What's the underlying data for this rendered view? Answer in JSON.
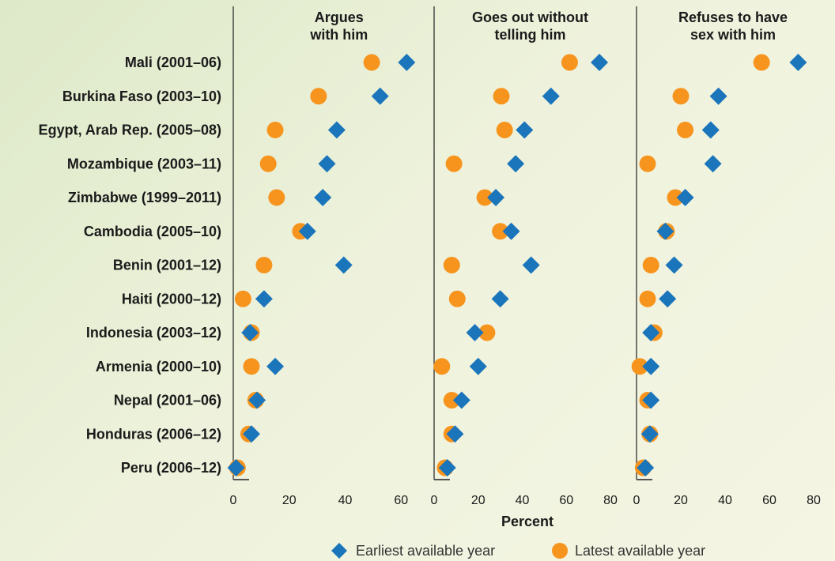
{
  "chart_data": {
    "type": "scatter",
    "xlabel": "Percent",
    "x_ticks": [
      "0",
      "20",
      "40",
      "60",
      "80"
    ],
    "countries": [
      "Mali (2001–06)",
      "Burkina Faso (2003–10)",
      "Egypt, Arab Rep. (2005–08)",
      "Mozambique (2003–11)",
      "Zimbabwe (1999–2011)",
      "Cambodia (2005–10)",
      "Benin (2001–12)",
      "Haiti (2000–12)",
      "Indonesia (2003–12)",
      "Armenia (2000–10)",
      "Nepal (2001–06)",
      "Honduras (2006–12)",
      "Peru (2006–12)"
    ],
    "panels": [
      {
        "title_lines": [
          "Argues",
          "with him"
        ],
        "xlim": [
          0,
          70
        ],
        "earliest": [
          62,
          52.5,
          37,
          33.5,
          32,
          26.5,
          39.5,
          11,
          6,
          15,
          8.5,
          6.5,
          1
        ],
        "latest": [
          49.5,
          30.5,
          15,
          12.5,
          15.5,
          24,
          11,
          3.5,
          6.5,
          6.5,
          8,
          5.5,
          1.5
        ]
      },
      {
        "title_lines": [
          "Goes out without",
          "telling him"
        ],
        "xlim": [
          0,
          80
        ],
        "earliest": [
          75,
          53,
          41,
          37,
          28,
          35,
          44,
          30,
          18.5,
          20,
          12.5,
          9.5,
          6
        ],
        "latest": [
          61.5,
          30.5,
          32,
          9,
          23,
          30,
          8,
          10.5,
          24,
          3.5,
          8,
          8,
          5
        ]
      },
      {
        "title_lines": [
          "Refuses to have",
          "sex with him"
        ],
        "xlim": [
          0,
          80
        ],
        "earliest": [
          73,
          37,
          33.5,
          34.5,
          22,
          13,
          17,
          14,
          6.5,
          6.5,
          6.5,
          6,
          4
        ],
        "latest": [
          56.5,
          20,
          22,
          5,
          17.5,
          13.5,
          6.5,
          5,
          8,
          1.5,
          5,
          6,
          3
        ]
      }
    ],
    "legend": {
      "position": "bottom",
      "entries": [
        {
          "label": "Earliest available year",
          "marker": "diamond",
          "color": "#1b75bb"
        },
        {
          "label": "Latest available year",
          "marker": "circle",
          "color": "#f7941d"
        }
      ]
    },
    "grid": false
  }
}
